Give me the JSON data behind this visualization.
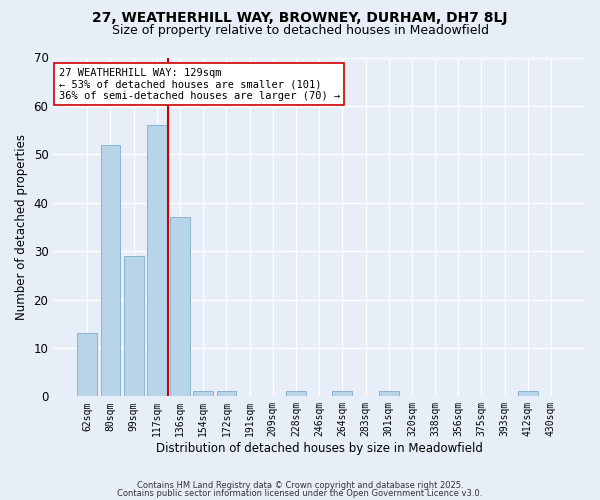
{
  "title1": "27, WEATHERHILL WAY, BROWNEY, DURHAM, DH7 8LJ",
  "title2": "Size of property relative to detached houses in Meadowfield",
  "xlabel": "Distribution of detached houses by size in Meadowfield",
  "ylabel": "Number of detached properties",
  "categories": [
    "62sqm",
    "80sqm",
    "99sqm",
    "117sqm",
    "136sqm",
    "154sqm",
    "172sqm",
    "191sqm",
    "209sqm",
    "228sqm",
    "246sqm",
    "264sqm",
    "283sqm",
    "301sqm",
    "320sqm",
    "338sqm",
    "356sqm",
    "375sqm",
    "393sqm",
    "412sqm",
    "430sqm"
  ],
  "values": [
    13,
    52,
    29,
    56,
    37,
    1,
    1,
    0,
    0,
    1,
    0,
    1,
    0,
    1,
    0,
    0,
    0,
    0,
    0,
    1,
    0
  ],
  "bar_color": "#b8d4e8",
  "bar_edge_color": "#8ab4d0",
  "property_line_index": 4,
  "property_line_color": "#cc0000",
  "ylim": [
    0,
    70
  ],
  "yticks": [
    0,
    10,
    20,
    30,
    40,
    50,
    60,
    70
  ],
  "annotation_title": "27 WEATHERHILL WAY: 129sqm",
  "annotation_line1": "← 53% of detached houses are smaller (101)",
  "annotation_line2": "36% of semi-detached houses are larger (70) →",
  "annotation_box_color": "#ffffff",
  "annotation_box_edge": "#cc0000",
  "footer1": "Contains HM Land Registry data © Crown copyright and database right 2025.",
  "footer2": "Contains public sector information licensed under the Open Government Licence v3.0.",
  "bg_color": "#e8eef8",
  "title_fontsize": 10,
  "subtitle_fontsize": 9
}
